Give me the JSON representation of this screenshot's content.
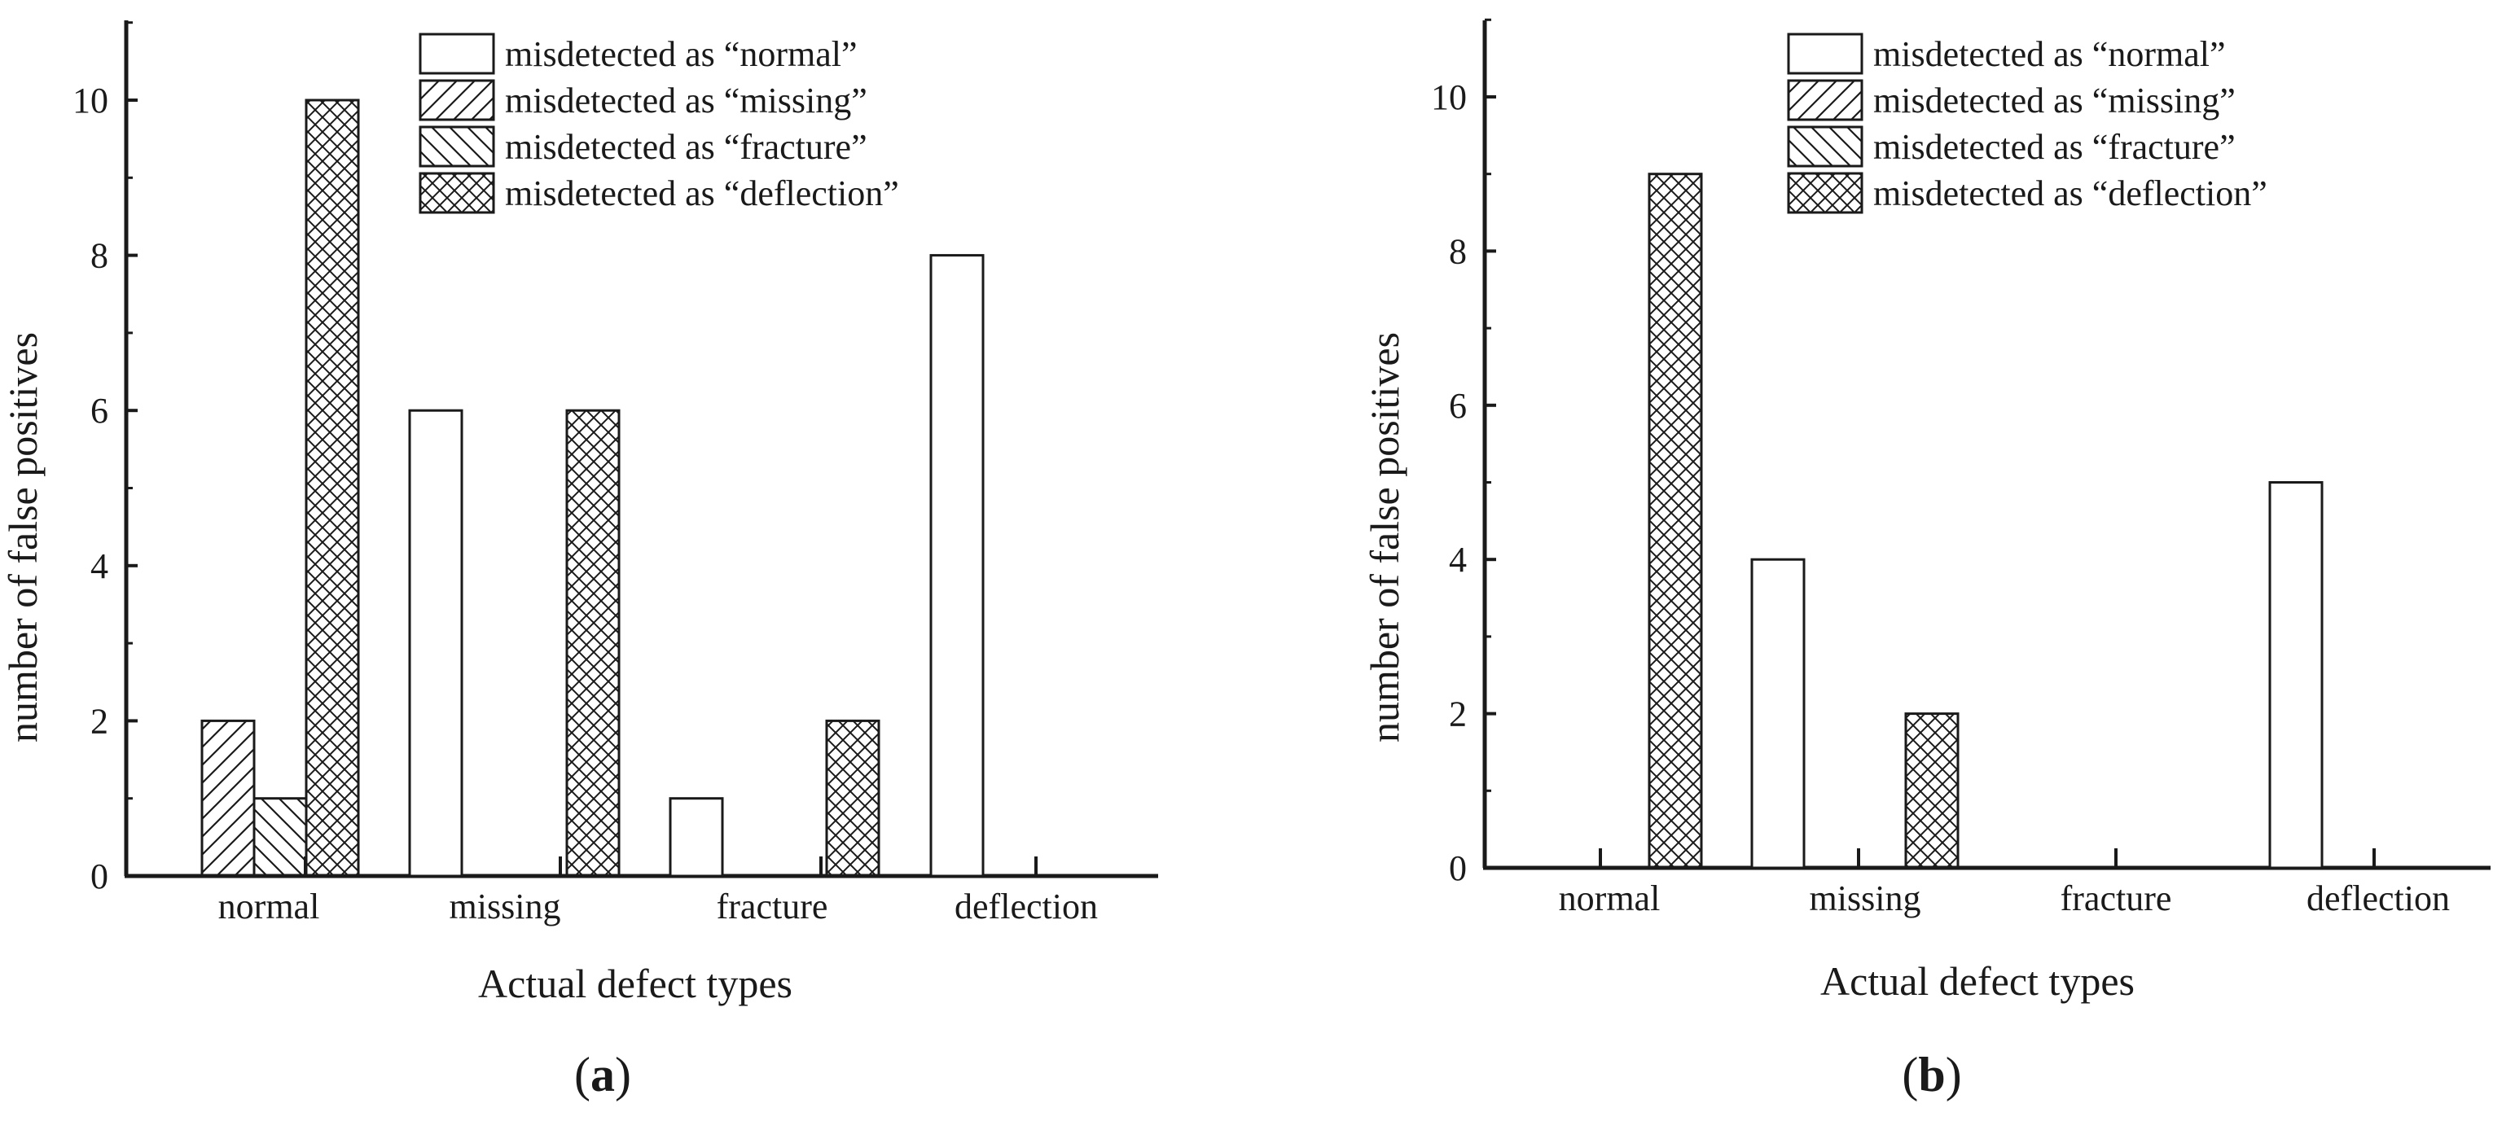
{
  "figure": {
    "panels": [
      {
        "open": "(",
        "letter": "a",
        "close": ")"
      },
      {
        "open": "(",
        "letter": "b",
        "close": ")"
      }
    ]
  },
  "chart_data": [
    {
      "type": "bar",
      "panel": "a",
      "title": "",
      "xlabel": "Actual defect types",
      "ylabel": "number of false positives",
      "categories": [
        "normal",
        "missing",
        "fracture",
        "deflection"
      ],
      "ylim": [
        0,
        11
      ],
      "yticks": [
        0,
        2,
        4,
        6,
        8,
        10
      ],
      "grid": false,
      "legend_position": "top-right",
      "series": [
        {
          "name": "misdetected as “normal”",
          "pattern": "none",
          "values": [
            0,
            6,
            1,
            8
          ]
        },
        {
          "name": "misdetected as “missing”",
          "pattern": "diagonal-up",
          "values": [
            2,
            0,
            0,
            0
          ]
        },
        {
          "name": "misdetected as “fracture”",
          "pattern": "diagonal-down",
          "values": [
            1,
            0,
            0,
            0
          ]
        },
        {
          "name": "misdetected as “deflection”",
          "pattern": "crosshatch",
          "values": [
            10,
            6,
            2,
            0
          ]
        }
      ]
    },
    {
      "type": "bar",
      "panel": "b",
      "title": "",
      "xlabel": "Actual defect types",
      "ylabel": "number of false positives",
      "categories": [
        "normal",
        "missing",
        "fracture",
        "deflection"
      ],
      "ylim": [
        0,
        11
      ],
      "yticks": [
        0,
        2,
        4,
        6,
        8,
        10
      ],
      "grid": false,
      "legend_position": "top-right",
      "series": [
        {
          "name": "misdetected as “normal”",
          "pattern": "none",
          "values": [
            0,
            4,
            0,
            5
          ]
        },
        {
          "name": "misdetected as “missing”",
          "pattern": "diagonal-up",
          "values": [
            0,
            0,
            0,
            0
          ]
        },
        {
          "name": "misdetected as “fracture”",
          "pattern": "diagonal-down",
          "values": [
            0,
            0,
            0,
            0
          ]
        },
        {
          "name": "misdetected as “deflection”",
          "pattern": "crosshatch",
          "values": [
            9,
            2,
            0,
            0
          ]
        }
      ]
    }
  ]
}
